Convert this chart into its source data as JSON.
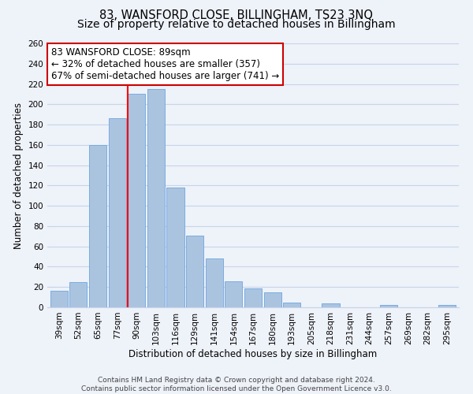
{
  "title": "83, WANSFORD CLOSE, BILLINGHAM, TS23 3NQ",
  "subtitle": "Size of property relative to detached houses in Billingham",
  "xlabel": "Distribution of detached houses by size in Billingham",
  "ylabel": "Number of detached properties",
  "bar_labels": [
    "39sqm",
    "52sqm",
    "65sqm",
    "77sqm",
    "90sqm",
    "103sqm",
    "116sqm",
    "129sqm",
    "141sqm",
    "154sqm",
    "167sqm",
    "180sqm",
    "193sqm",
    "205sqm",
    "218sqm",
    "231sqm",
    "244sqm",
    "257sqm",
    "269sqm",
    "282sqm",
    "295sqm"
  ],
  "bar_values": [
    16,
    25,
    160,
    186,
    210,
    215,
    118,
    71,
    48,
    26,
    19,
    15,
    5,
    0,
    4,
    0,
    0,
    2,
    0,
    0,
    2
  ],
  "bar_color": "#aac4e0",
  "bar_edge_color": "#7aace0",
  "vline_color": "red",
  "vline_bar_index": 4,
  "annotation_text": "83 WANSFORD CLOSE: 89sqm\n← 32% of detached houses are smaller (357)\n67% of semi-detached houses are larger (741) →",
  "annotation_box_color": "white",
  "annotation_box_edge_color": "#cc0000",
  "ylim": [
    0,
    260
  ],
  "yticks": [
    0,
    20,
    40,
    60,
    80,
    100,
    120,
    140,
    160,
    180,
    200,
    220,
    240,
    260
  ],
  "footer_line1": "Contains HM Land Registry data © Crown copyright and database right 2024.",
  "footer_line2": "Contains public sector information licensed under the Open Government Licence v3.0.",
  "background_color": "#eef2f9",
  "grid_color": "#c8d4e8",
  "title_fontsize": 10.5,
  "xlabel_fontsize": 8.5,
  "ylabel_fontsize": 8.5,
  "tick_fontsize": 7.5,
  "annotation_fontsize": 8.5,
  "footer_fontsize": 6.5
}
